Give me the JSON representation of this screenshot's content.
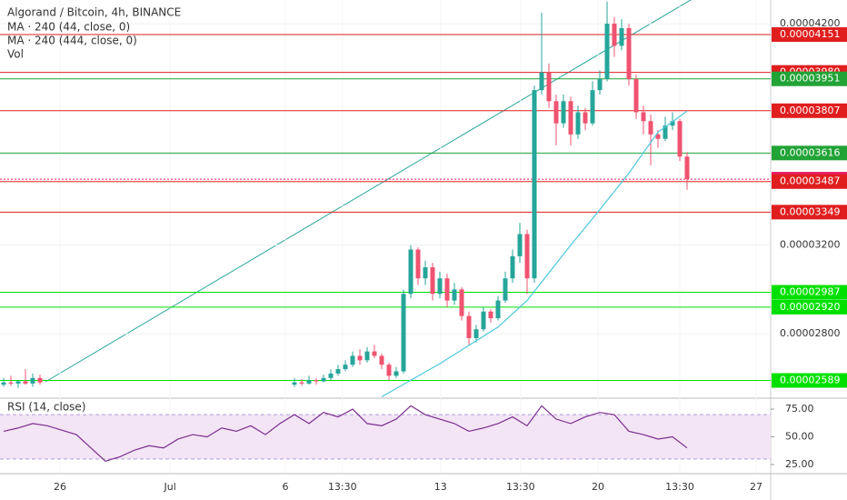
{
  "chart_data": {
    "type": "candlestick",
    "title": "Algorand / Bitcoin, 4h, BINANCE",
    "indicators": [
      "MA · 240 (44, close, 0)",
      "MA · 240 (444, close, 0)",
      "Vol"
    ],
    "up_color": "#26a69a",
    "down_color": "#ef5370",
    "xlim": [
      -0.5,
      105.5
    ],
    "xticks": [
      {
        "value": 7.75,
        "label": "26"
      },
      {
        "value": 22.9,
        "label": "Jul"
      },
      {
        "value": 38.75,
        "label": "6"
      },
      {
        "value": 46.6,
        "label": "13:30"
      },
      {
        "value": 60.1,
        "label": "13"
      },
      {
        "value": 71.1,
        "label": "13:30"
      },
      {
        "value": 81.75,
        "label": "20"
      },
      {
        "value": 93,
        "label": "13:30"
      },
      {
        "value": 103.5,
        "label": "27"
      }
    ],
    "ylim": [
      2.513e-05,
      4.307e-05
    ],
    "yticks": [
      {
        "value": 4.2e-05,
        "label": "0.00004200"
      },
      {
        "value": 3.2e-05,
        "label": "0.00003200"
      },
      {
        "value": 2.8e-05,
        "label": "0.00002800"
      }
    ],
    "grid": true,
    "x": [
      0,
      1,
      2,
      3,
      4,
      5,
      40,
      41,
      42,
      43,
      44,
      45,
      46,
      47,
      48,
      49,
      50,
      51,
      52,
      53,
      54,
      55,
      56,
      57,
      58,
      59,
      60,
      61,
      62,
      63,
      64,
      65,
      66,
      67,
      68,
      69,
      70,
      71,
      72,
      73,
      74,
      75,
      76,
      77,
      78,
      79,
      80,
      81,
      82,
      83,
      84,
      85,
      86,
      87,
      88,
      89,
      90,
      91,
      92,
      93,
      94
    ],
    "ohlc": [
      [
        2.57e-05,
        2.6e-05,
        2.56e-05,
        2.58e-05
      ],
      [
        2.58e-05,
        2.61e-05,
        2.565e-05,
        2.575e-05
      ],
      [
        2.575e-05,
        2.59e-05,
        2.555e-05,
        2.585e-05
      ],
      [
        2.585e-05,
        2.64e-05,
        2.57e-05,
        2.575e-05
      ],
      [
        2.575e-05,
        2.62e-05,
        2.56e-05,
        2.6e-05
      ],
      [
        2.6e-05,
        2.615e-05,
        2.57e-05,
        2.58e-05
      ],
      [
        2.57e-05,
        2.6e-05,
        2.56e-05,
        2.58e-05
      ],
      [
        2.58e-05,
        2.595e-05,
        2.565e-05,
        2.575e-05
      ],
      [
        2.575e-05,
        2.61e-05,
        2.57e-05,
        2.59e-05
      ],
      [
        2.59e-05,
        2.6e-05,
        2.57e-05,
        2.585e-05
      ],
      [
        2.585e-05,
        2.615e-05,
        2.58e-05,
        2.6e-05
      ],
      [
        2.6e-05,
        2.64e-05,
        2.59e-05,
        2.62e-05
      ],
      [
        2.62e-05,
        2.66e-05,
        2.61e-05,
        2.64e-05
      ],
      [
        2.64e-05,
        2.68e-05,
        2.63e-05,
        2.66e-05
      ],
      [
        2.66e-05,
        2.72e-05,
        2.65e-05,
        2.7e-05
      ],
      [
        2.7e-05,
        2.73e-05,
        2.66e-05,
        2.68e-05
      ],
      [
        2.68e-05,
        2.74e-05,
        2.67e-05,
        2.72e-05
      ],
      [
        2.72e-05,
        2.75e-05,
        2.69e-05,
        2.7e-05
      ],
      [
        2.7e-05,
        2.71e-05,
        2.64e-05,
        2.66e-05
      ],
      [
        2.66e-05,
        2.67e-05,
        2.59e-05,
        2.61e-05
      ],
      [
        2.61e-05,
        2.65e-05,
        2.6e-05,
        2.63e-05
      ],
      [
        2.63e-05,
        3e-05,
        2.62e-05,
        2.98e-05
      ],
      [
        2.98e-05,
        3.2e-05,
        2.96e-05,
        3.18e-05
      ],
      [
        3.18e-05,
        3.19e-05,
        3.02e-05,
        3.05e-05
      ],
      [
        3.05e-05,
        3.13e-05,
        3.02e-05,
        3.1e-05
      ],
      [
        3.1e-05,
        3.12e-05,
        2.95e-05,
        2.98e-05
      ],
      [
        2.98e-05,
        3.08e-05,
        2.96e-05,
        3.05e-05
      ],
      [
        3.05e-05,
        3.07e-05,
        2.92e-05,
        2.95e-05
      ],
      [
        2.95e-05,
        3.03e-05,
        2.93e-05,
        3e-05
      ],
      [
        3e-05,
        3.01e-05,
        2.86e-05,
        2.88e-05
      ],
      [
        2.88e-05,
        2.9e-05,
        2.75e-05,
        2.78e-05
      ],
      [
        2.78e-05,
        2.84e-05,
        2.76e-05,
        2.82e-05
      ],
      [
        2.82e-05,
        2.92e-05,
        2.81e-05,
        2.9e-05
      ],
      [
        2.9e-05,
        2.91e-05,
        2.85e-05,
        2.87e-05
      ],
      [
        2.87e-05,
        2.97e-05,
        2.86e-05,
        2.95e-05
      ],
      [
        2.95e-05,
        3.08e-05,
        2.94e-05,
        3.05e-05
      ],
      [
        3.05e-05,
        3.18e-05,
        3.03e-05,
        3.15e-05
      ],
      [
        3.15e-05,
        3.3e-05,
        3.12e-05,
        3.25e-05
      ],
      [
        3.25e-05,
        3.27e-05,
        2.98e-05,
        3.05e-05
      ],
      [
        3.05e-05,
        3.92e-05,
        3.03e-05,
        3.9e-05
      ],
      [
        3.9e-05,
        4.25e-05,
        3.88e-05,
        3.98e-05
      ],
      [
        3.98e-05,
        4.02e-05,
        3.82e-05,
        3.85e-05
      ],
      [
        3.85e-05,
        3.88e-05,
        3.65e-05,
        3.75e-05
      ],
      [
        3.75e-05,
        3.88e-05,
        3.73e-05,
        3.85e-05
      ],
      [
        3.85e-05,
        3.87e-05,
        3.65e-05,
        3.7e-05
      ],
      [
        3.7e-05,
        3.83e-05,
        3.68e-05,
        3.8e-05
      ],
      [
        3.8e-05,
        3.82e-05,
        3.72e-05,
        3.75e-05
      ],
      [
        3.75e-05,
        3.94e-05,
        3.74e-05,
        3.9e-05
      ],
      [
        3.9e-05,
        3.99e-05,
        3.88e-05,
        3.95e-05
      ],
      [
        3.95e-05,
        4.3e-05,
        3.94e-05,
        4.2e-05
      ],
      [
        4.2e-05,
        4.23e-05,
        4.05e-05,
        4.1e-05
      ],
      [
        4.1e-05,
        4.22e-05,
        4.08e-05,
        4.18e-05
      ],
      [
        4.18e-05,
        4.2e-05,
        3.92e-05,
        3.95e-05
      ],
      [
        3.95e-05,
        3.97e-05,
        3.77e-05,
        3.8e-05
      ],
      [
        3.8e-05,
        3.83e-05,
        3.7e-05,
        3.76e-05
      ],
      [
        3.76e-05,
        3.79e-05,
        3.56e-05,
        3.7e-05
      ],
      [
        3.7e-05,
        3.72e-05,
        3.64e-05,
        3.68e-05
      ],
      [
        3.68e-05,
        3.78e-05,
        3.67e-05,
        3.74e-05
      ],
      [
        3.74e-05,
        3.8e-05,
        3.72e-05,
        3.76e-05
      ],
      [
        3.76e-05,
        3.77e-05,
        3.58e-05,
        3.6e-05
      ],
      [
        3.6e-05,
        3.62e-05,
        3.45e-05,
        3.498e-05
      ]
    ],
    "levels": [
      {
        "value": 4.151e-05,
        "label": "0.00004151",
        "color": "#e01e1e"
      },
      {
        "value": 3.98e-05,
        "label": "0.00003980",
        "color": "#e01e1e"
      },
      {
        "value": 3.951e-05,
        "label": "0.00003951",
        "color": "#21a336"
      },
      {
        "value": 3.807e-05,
        "label": "0.00003807",
        "color": "#e01e1e"
      },
      {
        "value": 3.616e-05,
        "label": "0.00003616",
        "color": "#21a336"
      },
      {
        "value": 3.498e-05,
        "label": "0.00003498",
        "color": "#e91e63",
        "line_style": "dotted"
      },
      {
        "value": 3.487e-05,
        "label": "0.00003487",
        "color": "#e01e1e"
      },
      {
        "value": 3.349e-05,
        "label": "0.00003349",
        "color": "#e01e1e"
      },
      {
        "value": 2.987e-05,
        "label": "0.00002987",
        "color": "#00e000"
      },
      {
        "value": 2.92e-05,
        "label": "0.00002920",
        "color": "#00e000"
      },
      {
        "value": 2.589e-05,
        "label": "0.00002589",
        "color": "#00e000"
      }
    ],
    "ma": {
      "color": "#4dc8dc",
      "x": [
        52,
        60,
        68,
        72,
        78,
        82,
        86,
        90,
        94
      ],
      "values": [
        2.515e-05,
        2.665e-05,
        2.83e-05,
        2.95e-05,
        3.2e-05,
        3.36e-05,
        3.525e-05,
        3.71e-05,
        3.805e-05
      ]
    },
    "rsi": {
      "type": "line",
      "title": "RSI (14, close)",
      "color": "#7b2e8e",
      "ylim": [
        17.6,
        81.6
      ],
      "yticks": [
        {
          "value": 75,
          "label": "75.00"
        },
        {
          "value": 50,
          "label": "50.00"
        },
        {
          "value": 25,
          "label": "25.00"
        }
      ],
      "band": [
        30,
        70
      ],
      "x": [
        0,
        2,
        4,
        6,
        8,
        10,
        12,
        14,
        16,
        18,
        20,
        22,
        24,
        26,
        28,
        30,
        32,
        34,
        36,
        38,
        40,
        42,
        44,
        46,
        48,
        50,
        52,
        54,
        56,
        58,
        60,
        62,
        64,
        66,
        68,
        70,
        72,
        74,
        76,
        78,
        80,
        82,
        84,
        86,
        88,
        90,
        92,
        94
      ],
      "values": [
        55,
        58,
        62,
        60,
        56,
        52,
        40,
        28,
        32,
        38,
        42,
        40,
        48,
        52,
        50,
        58,
        55,
        60,
        52,
        62,
        70,
        62,
        72,
        68,
        75,
        62,
        60,
        66,
        78,
        70,
        66,
        62,
        55,
        58,
        62,
        68,
        60,
        78,
        66,
        62,
        68,
        72,
        70,
        55,
        52,
        48,
        50,
        40
      ]
    }
  }
}
